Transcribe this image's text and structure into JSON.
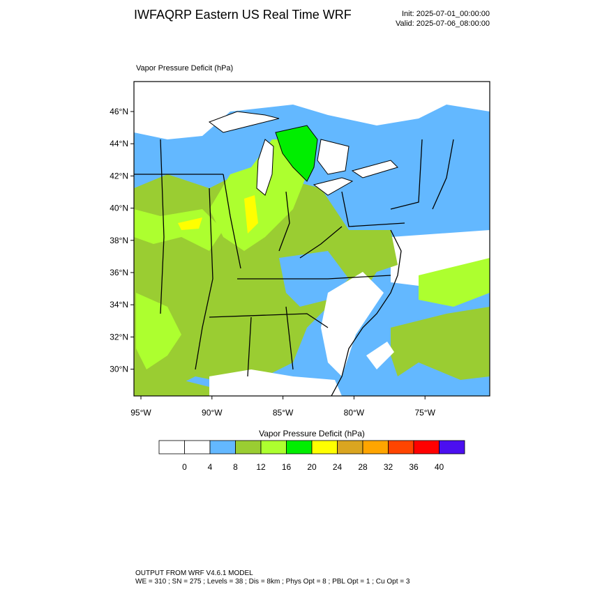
{
  "header": {
    "title": "IWFAQRP Eastern US Real Time WRF",
    "init": "Init: 2025-07-01_00:00:00",
    "valid": "Valid: 2025-07-06_08:00:00"
  },
  "map": {
    "label": "Vapor Pressure Deficit   (hPa)",
    "lat_ticks": [
      {
        "value": 46,
        "label": "46°N"
      },
      {
        "value": 44,
        "label": "44°N"
      },
      {
        "value": 42,
        "label": "42°N"
      },
      {
        "value": 40,
        "label": "40°N"
      },
      {
        "value": 38,
        "label": "38°N"
      },
      {
        "value": 36,
        "label": "36°N"
      },
      {
        "value": 34,
        "label": "34°N"
      },
      {
        "value": 32,
        "label": "32°N"
      },
      {
        "value": 30,
        "label": "30°N"
      }
    ],
    "lon_ticks": [
      {
        "value": -95,
        "label": "95°W"
      },
      {
        "value": -90,
        "label": "90°W"
      },
      {
        "value": -85,
        "label": "85°W"
      },
      {
        "value": -80,
        "label": "80°W"
      },
      {
        "value": -75,
        "label": "75°W"
      }
    ]
  },
  "colorbar": {
    "title": "Vapor Pressure Deficit  (hPa)",
    "levels": [
      0,
      4,
      8,
      12,
      16,
      20,
      24,
      28,
      32,
      36,
      40
    ],
    "colors": [
      "#ffffff",
      "#ffffff",
      "#63b8ff",
      "#9acd32",
      "#adff2f",
      "#00ee00",
      "#ffff00",
      "#daa520",
      "#ffa500",
      "#ff4500",
      "#ff0000",
      "#4b0ff0"
    ]
  },
  "footer": {
    "line1": "OUTPUT FROM WRF V4.6.1 MODEL",
    "line2": "WE = 310 ; SN = 275 ; Levels = 38 ; Dis = 8km ; Phys Opt = 8 ; PBL Opt = 1 ; Cu Opt = 3"
  }
}
